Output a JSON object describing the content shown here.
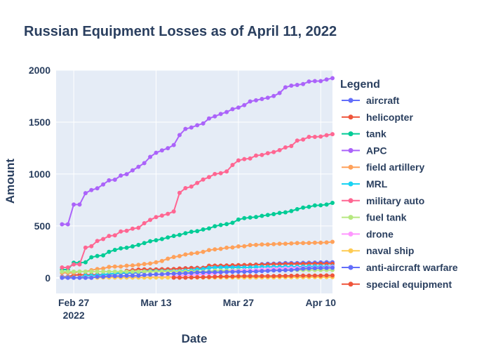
{
  "chart_data": {
    "type": "line",
    "title": "Russian Equipment Losses as of April 11, 2022",
    "xlabel": "Date",
    "ylabel": "Amount",
    "legend_title": "Legend",
    "legend_position": "right",
    "grid": true,
    "x_start": "2022-02-25",
    "x_end": "2022-04-11",
    "xlim": [
      "2022-02-24",
      "2022-04-12"
    ],
    "ylim": [
      -150,
      2000
    ],
    "y_ticks": [
      0,
      500,
      1000,
      1500,
      2000
    ],
    "x_ticks": [
      {
        "date": "2022-02-27",
        "label": "Feb 27",
        "sublabel": "2022"
      },
      {
        "date": "2022-03-13",
        "label": "Mar 13",
        "sublabel": ""
      },
      {
        "date": "2022-03-27",
        "label": "Mar 27",
        "sublabel": ""
      },
      {
        "date": "2022-04-10",
        "label": "Apr 10",
        "sublabel": ""
      }
    ],
    "series": [
      {
        "name": "aircraft",
        "color": "#636efa",
        "values": [
          10,
          10,
          27,
          29,
          29,
          29,
          30,
          30,
          33,
          39,
          44,
          46,
          48,
          49,
          57,
          74,
          77,
          81,
          81,
          84,
          86,
          93,
          95,
          96,
          97,
          99,
          101,
          108,
          112,
          115,
          117,
          121,
          123,
          127,
          131,
          135,
          137,
          139,
          143,
          143,
          143,
          145,
          146,
          147,
          148,
          150,
          150
        ]
      },
      {
        "name": "helicopter",
        "color": "#ef553b",
        "values": [
          7,
          7,
          26,
          29,
          29,
          29,
          31,
          31,
          37,
          40,
          48,
          68,
          74,
          80,
          81,
          80,
          81,
          83,
          83,
          85,
          90,
          92,
          95,
          96,
          96,
          117,
          118,
          118,
          120,
          121,
          123,
          124,
          125,
          127,
          127,
          129,
          131,
          131,
          133,
          134,
          134,
          134,
          135,
          135,
          135,
          135,
          135
        ]
      },
      {
        "name": "tank",
        "color": "#00cc96",
        "values": [
          80,
          80,
          146,
          146,
          150,
          198,
          211,
          217,
          251,
          269,
          285,
          290,
          303,
          317,
          335,
          353,
          362,
          374,
          389,
          404,
          414,
          430,
          444,
          450,
          466,
          476,
          498,
          509,
          517,
          530,
          561,
          575,
          581,
          586,
          597,
          605,
          614,
          625,
          631,
          644,
          661,
          676,
          684,
          698,
          699,
          706,
          722
        ]
      },
      {
        "name": "APC",
        "color": "#ab63fa",
        "values": [
          516,
          516,
          706,
          706,
          816,
          846,
          862,
          900,
          939,
          945,
          985,
          999,
          1036,
          1070,
          1105,
          1165,
          1205,
          1228,
          1249,
          1279,
          1375,
          1435,
          1448,
          1470,
          1487,
          1535,
          1556,
          1578,
          1597,
          1625,
          1640,
          1664,
          1699,
          1710,
          1723,
          1735,
          1751,
          1780,
          1835,
          1851,
          1858,
          1867,
          1891,
          1895,
          1895,
          1911,
          1923
        ]
      },
      {
        "name": "field artillery",
        "color": "#ffa15a",
        "values": [
          49,
          49,
          49,
          60,
          60,
          74,
          85,
          90,
          105,
          109,
          109,
          117,
          120,
          125,
          133,
          138,
          150,
          163,
          185,
          201,
          210,
          225,
          234,
          241,
          251,
          267,
          274,
          279,
          290,
          293,
          303,
          305,
          316,
          317,
          321,
          322,
          325,
          329,
          329,
          332,
          335,
          335,
          336,
          338,
          338,
          341,
          347
        ]
      },
      {
        "name": "MRL",
        "color": "#19d3f3",
        "values": [
          4,
          4,
          4,
          4,
          21,
          21,
          24,
          29,
          40,
          42,
          50,
          50,
          56,
          58,
          62,
          64,
          64,
          64,
          64,
          64,
          64,
          70,
          72,
          81,
          84,
          96,
          99,
          100,
          100,
          100,
          100,
          100,
          100,
          104,
          105,
          105,
          106,
          106,
          108,
          108,
          108,
          109,
          111,
          111,
          111,
          111,
          111
        ]
      },
      {
        "name": "military auto",
        "color": "#ff6692",
        "values": [
          100,
          100,
          130,
          130,
          291,
          305,
          355,
          374,
          404,
          409,
          447,
          454,
          474,
          482,
          526,
          558,
          585,
          600,
          617,
          640,
          819,
          864,
          879,
          914,
          947,
          970,
          1000,
          1008,
          1025,
          1087,
          1131,
          1144,
          1150,
          1178,
          1184,
          1201,
          1212,
          1230,
          1256,
          1270,
          1322,
          1332,
          1358,
          1358,
          1361,
          1374,
          1384
        ]
      },
      {
        "name": "fuel tank",
        "color": "#b6e880",
        "values": [
          60,
          60,
          60,
          60,
          60,
          60,
          60,
          60,
          60,
          60,
          60,
          60,
          60,
          60,
          60,
          60,
          60,
          60,
          60,
          60,
          60,
          60,
          60,
          60,
          60,
          60,
          70,
          70,
          70,
          72,
          73,
          73,
          73,
          73,
          73,
          73,
          74,
          75,
          75,
          76,
          76,
          76,
          76,
          76,
          76,
          76,
          76
        ]
      },
      {
        "name": "drone",
        "color": "#ff97ff",
        "values": [
          2,
          2,
          2,
          3,
          3,
          3,
          5,
          7,
          7,
          7,
          7,
          7,
          7,
          7,
          7,
          8,
          11,
          11,
          12,
          14,
          24,
          24,
          27,
          30,
          35,
          42,
          42,
          53,
          56,
          66,
          66,
          71,
          72,
          75,
          81,
          83,
          87,
          87,
          91,
          92,
          94,
          95,
          96,
          97,
          99,
          101,
          104
        ]
      },
      {
        "name": "naval ship",
        "color": "#fecb52",
        "values": [
          2,
          2,
          2,
          2,
          2,
          2,
          2,
          3,
          3,
          3,
          3,
          3,
          3,
          3,
          3,
          3,
          3,
          3,
          3,
          3,
          3,
          3,
          3,
          3,
          3,
          3,
          3,
          4,
          4,
          4,
          4,
          4,
          4,
          4,
          5,
          5,
          5,
          6,
          6,
          6,
          6,
          6,
          7,
          7,
          7,
          7,
          7
        ]
      },
      {
        "name": "anti-aircraft warfare",
        "color": "#636efa",
        "values": [
          0,
          0,
          0,
          0,
          0,
          0,
          11,
          11,
          18,
          18,
          18,
          21,
          21,
          21,
          27,
          31,
          34,
          35,
          39,
          40,
          43,
          45,
          47,
          52,
          52,
          54,
          55,
          55,
          57,
          58,
          59,
          59,
          60,
          61,
          66,
          67,
          71,
          72,
          74,
          76,
          82,
          88,
          91,
          93,
          94,
          95,
          97
        ]
      },
      {
        "name": "special equipment",
        "color": "#ef553b",
        "values": [
          null,
          null,
          null,
          null,
          null,
          null,
          null,
          null,
          null,
          null,
          null,
          null,
          null,
          null,
          null,
          null,
          null,
          null,
          null,
          2,
          2,
          2,
          4,
          6,
          6,
          9,
          10,
          13,
          14,
          14,
          16,
          17,
          17,
          17,
          17,
          17,
          18,
          19,
          19,
          20,
          22,
          22,
          22,
          22,
          22,
          23,
          23
        ]
      }
    ]
  }
}
